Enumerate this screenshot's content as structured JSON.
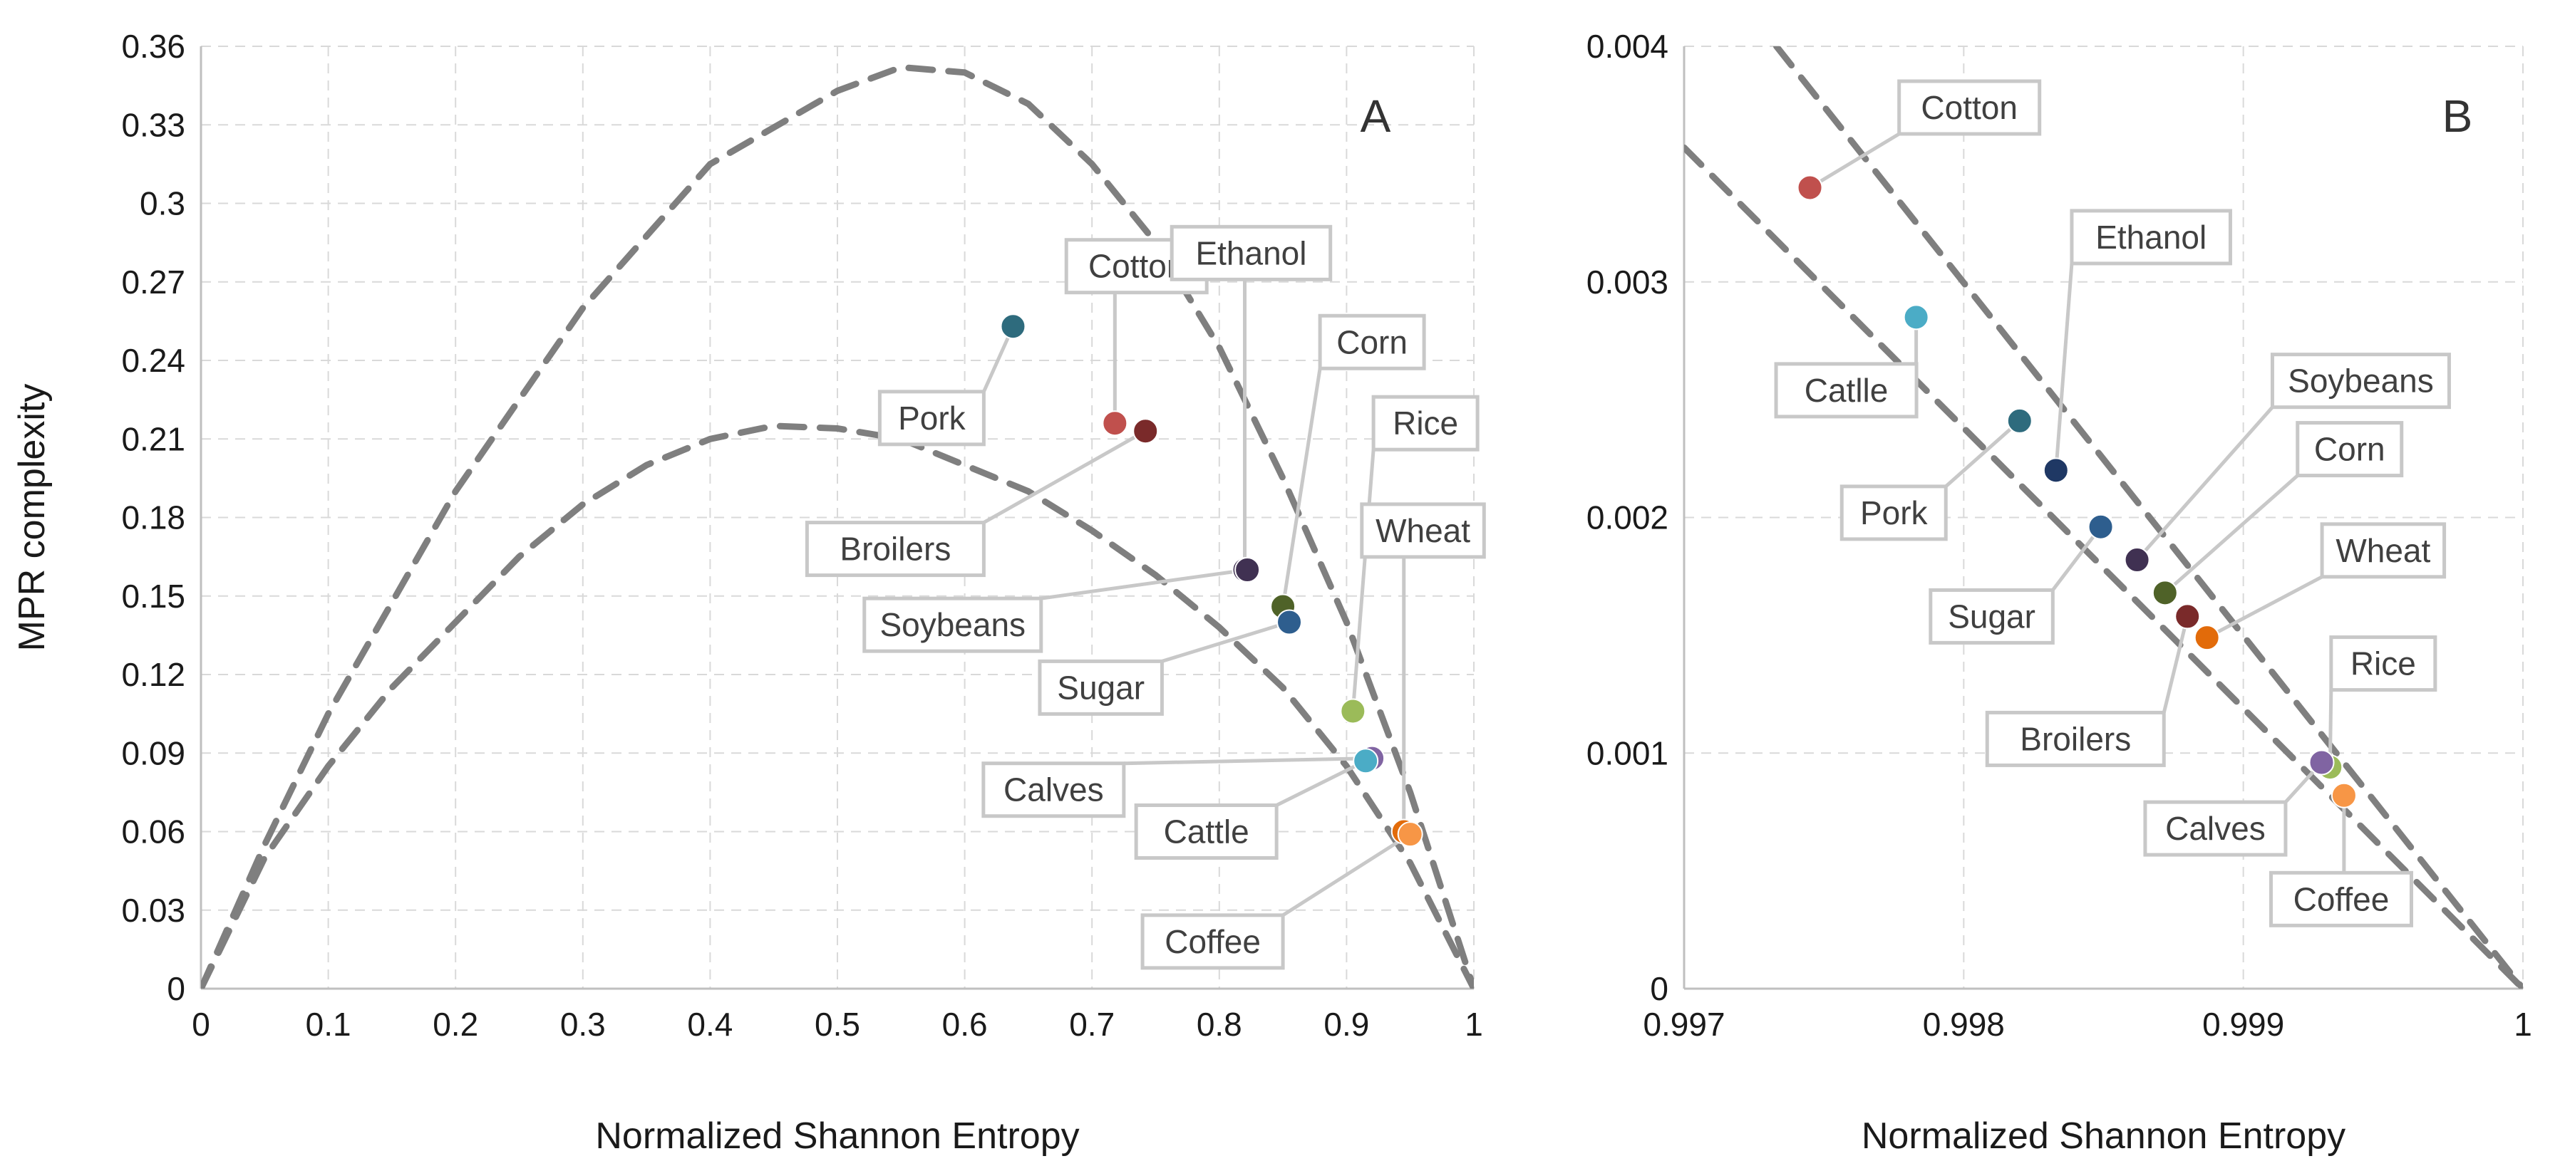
{
  "chart_data": [
    {
      "type": "scatter",
      "panel_label": "A",
      "xlabel": "Normalized Shannon Entropy",
      "ylabel": "MPR complexity",
      "xlim": [
        0,
        1
      ],
      "ylim": [
        0,
        0.36
      ],
      "xticks": [
        "0",
        "0.1",
        "0.2",
        "0.3",
        "0.4",
        "0.5",
        "0.6",
        "0.7",
        "0.8",
        "0.9",
        "1"
      ],
      "yticks": [
        "0",
        "0.03",
        "0.06",
        "0.09",
        "0.12",
        "0.15",
        "0.18",
        "0.21",
        "0.24",
        "0.27",
        "0.3",
        "0.33",
        "0.36"
      ],
      "grid": true,
      "bounds": [
        {
          "name": "upper",
          "x": [
            0,
            0.05,
            0.1,
            0.2,
            0.3,
            0.4,
            0.5,
            0.55,
            0.6,
            0.65,
            0.7,
            0.75,
            0.8,
            0.85,
            0.9,
            0.95,
            1.0
          ],
          "y": [
            0,
            0.055,
            0.105,
            0.19,
            0.26,
            0.315,
            0.343,
            0.352,
            0.35,
            0.338,
            0.315,
            0.285,
            0.245,
            0.195,
            0.14,
            0.075,
            0
          ]
        },
        {
          "name": "lower",
          "x": [
            0,
            0.05,
            0.1,
            0.15,
            0.2,
            0.25,
            0.3,
            0.35,
            0.4,
            0.45,
            0.5,
            0.55,
            0.6,
            0.65,
            0.7,
            0.75,
            0.8,
            0.85,
            0.9,
            0.95,
            1.0
          ],
          "y": [
            0,
            0.05,
            0.085,
            0.115,
            0.14,
            0.165,
            0.185,
            0.2,
            0.21,
            0.215,
            0.214,
            0.21,
            0.2,
            0.19,
            0.175,
            0.158,
            0.138,
            0.115,
            0.085,
            0.048,
            0
          ]
        }
      ],
      "points": [
        {
          "name": "Pork",
          "x": 0.638,
          "y": 0.253,
          "color": "#2e6b7d",
          "label_x": 0.615,
          "label_y": 0.218,
          "align": "end"
        },
        {
          "name": "Cotton",
          "x": 0.718,
          "y": 0.216,
          "color": "#c0504d",
          "label_x": 0.735,
          "label_y": 0.276,
          "align": "middle"
        },
        {
          "name": "Broilers",
          "x": 0.742,
          "y": 0.213,
          "color": "#7a2a2a",
          "label_x": 0.615,
          "label_y": 0.168,
          "align": "end"
        },
        {
          "name": "Ethanol",
          "x": 0.82,
          "y": 0.16,
          "color": "#403152",
          "label_x": 0.825,
          "label_y": 0.281,
          "align": "middle"
        },
        {
          "name": "Soybeans",
          "x": 0.822,
          "y": 0.16,
          "color": "#403152",
          "label_x": 0.66,
          "label_y": 0.139,
          "align": "end"
        },
        {
          "name": "Corn",
          "x": 0.85,
          "y": 0.146,
          "color": "#4f6228",
          "label_x": 0.92,
          "label_y": 0.247,
          "align": "middle"
        },
        {
          "name": "Sugar",
          "x": 0.855,
          "y": 0.14,
          "color": "#2e5e8e",
          "label_x": 0.755,
          "label_y": 0.115,
          "align": "end"
        },
        {
          "name": "Rice",
          "x": 0.905,
          "y": 0.106,
          "color": "#9bbb59",
          "label_x": 0.962,
          "label_y": 0.216,
          "align": "middle"
        },
        {
          "name": "Wheat",
          "x": 0.945,
          "y": 0.06,
          "color": "#e26b0a",
          "label_x": 0.96,
          "label_y": 0.175,
          "align": "middle"
        },
        {
          "name": "Calves",
          "x": 0.92,
          "y": 0.088,
          "color": "#8064a2",
          "label_x": 0.725,
          "label_y": 0.076,
          "align": "end"
        },
        {
          "name": "Cattle",
          "x": 0.915,
          "y": 0.087,
          "color": "#4bacc6",
          "label_x": 0.845,
          "label_y": 0.06,
          "align": "end"
        },
        {
          "name": "Coffee",
          "x": 0.95,
          "y": 0.059,
          "color": "#f79646",
          "label_x": 0.85,
          "label_y": 0.018,
          "align": "end"
        }
      ]
    },
    {
      "type": "scatter",
      "panel_label": "B",
      "xlabel": "Normalized Shannon Entropy",
      "ylabel": "",
      "xlim": [
        0.997,
        1
      ],
      "ylim": [
        0,
        0.004
      ],
      "xticks": [
        "0.997",
        "0.998",
        "0.999",
        "1"
      ],
      "yticks": [
        "0",
        "0.001",
        "0.002",
        "0.003",
        "0.004"
      ],
      "grid": true,
      "bounds": [
        {
          "name": "upper",
          "x": [
            0.99733,
            1.0
          ],
          "y": [
            0.004,
            0
          ]
        },
        {
          "name": "lower",
          "x": [
            0.997,
            1.0
          ],
          "y": [
            0.00357,
            0
          ]
        }
      ],
      "points": [
        {
          "name": "Cotton",
          "x": 0.99745,
          "y": 0.0034,
          "color": "#c0504d",
          "label_x": 0.99802,
          "label_y": 0.00374,
          "align": "middle"
        },
        {
          "name": "Catlle",
          "x": 0.99783,
          "y": 0.00285,
          "color": "#4bacc6",
          "label_x": 0.99758,
          "label_y": 0.00254,
          "align": "middle"
        },
        {
          "name": "Pork",
          "x": 0.9982,
          "y": 0.00241,
          "color": "#2e6b7d",
          "label_x": 0.99775,
          "label_y": 0.00202,
          "align": "middle"
        },
        {
          "name": "Ethanol",
          "x": 0.99833,
          "y": 0.0022,
          "color": "#1f3864",
          "label_x": 0.99867,
          "label_y": 0.00319,
          "align": "middle"
        },
        {
          "name": "Sugar",
          "x": 0.99849,
          "y": 0.00196,
          "color": "#2e5e8e",
          "label_x": 0.9981,
          "label_y": 0.00158,
          "align": "middle"
        },
        {
          "name": "Soybeans",
          "x": 0.99862,
          "y": 0.00182,
          "color": "#403152",
          "label_x": 0.99942,
          "label_y": 0.00258,
          "align": "middle"
        },
        {
          "name": "Corn",
          "x": 0.99872,
          "y": 0.00168,
          "color": "#4f6228",
          "label_x": 0.99938,
          "label_y": 0.00229,
          "align": "middle"
        },
        {
          "name": "Broilers",
          "x": 0.9988,
          "y": 0.00158,
          "color": "#7a2a2a",
          "label_x": 0.9984,
          "label_y": 0.00106,
          "align": "middle"
        },
        {
          "name": "Wheat",
          "x": 0.99887,
          "y": 0.00149,
          "color": "#e26b0a",
          "label_x": 0.9995,
          "label_y": 0.00186,
          "align": "middle"
        },
        {
          "name": "Rice",
          "x": 0.99931,
          "y": 0.00094,
          "color": "#9bbb59",
          "label_x": 0.9995,
          "label_y": 0.00138,
          "align": "middle"
        },
        {
          "name": "Calves",
          "x": 0.99928,
          "y": 0.00096,
          "color": "#8064a2",
          "label_x": 0.9989,
          "label_y": 0.00068,
          "align": "middle"
        },
        {
          "name": "Coffee",
          "x": 0.99936,
          "y": 0.00082,
          "color": "#f79646",
          "label_x": 0.99935,
          "label_y": 0.00038,
          "align": "middle"
        }
      ]
    }
  ]
}
